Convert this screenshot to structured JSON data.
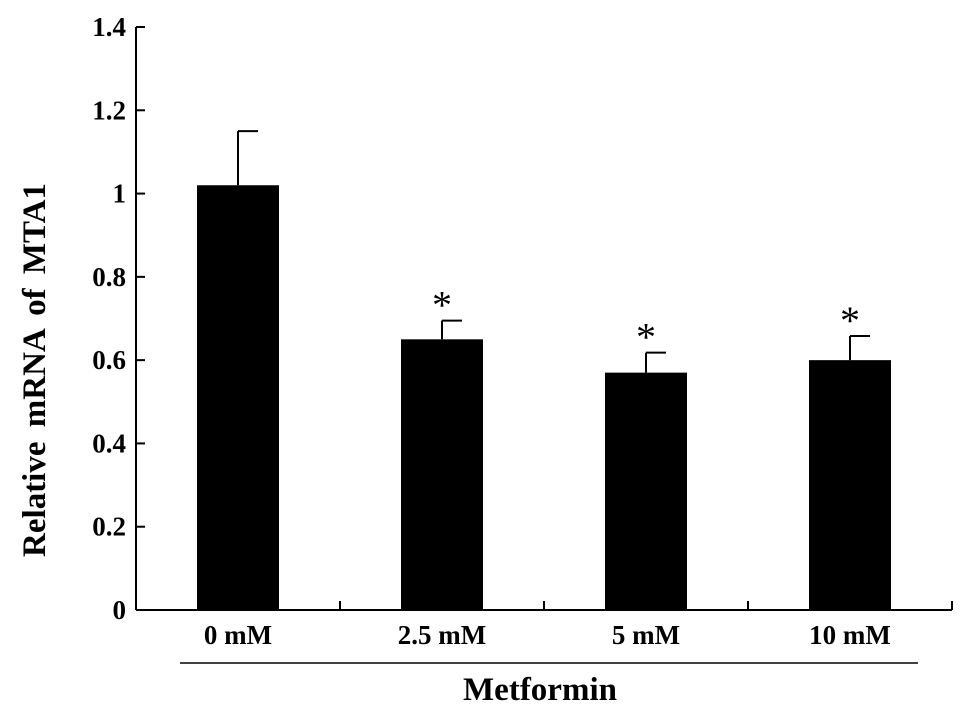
{
  "chart_data": {
    "type": "bar",
    "categories": [
      "0 mM",
      "2.5 mM",
      "5 mM",
      "10 mM"
    ],
    "values": [
      1.02,
      0.65,
      0.57,
      0.6
    ],
    "errors": [
      0.13,
      0.045,
      0.048,
      0.058
    ],
    "significance": [
      "",
      "*",
      "*",
      "*"
    ],
    "ylabel": "Relative mRNA of MTA1",
    "xlabel": "Metformin",
    "ylim": [
      0,
      1.4
    ],
    "yticks": [
      "0",
      "0.2",
      "0.4",
      "0.6",
      "0.8",
      "1",
      "1.2",
      "1.4"
    ],
    "grid": false,
    "bar_color": "#000000"
  }
}
